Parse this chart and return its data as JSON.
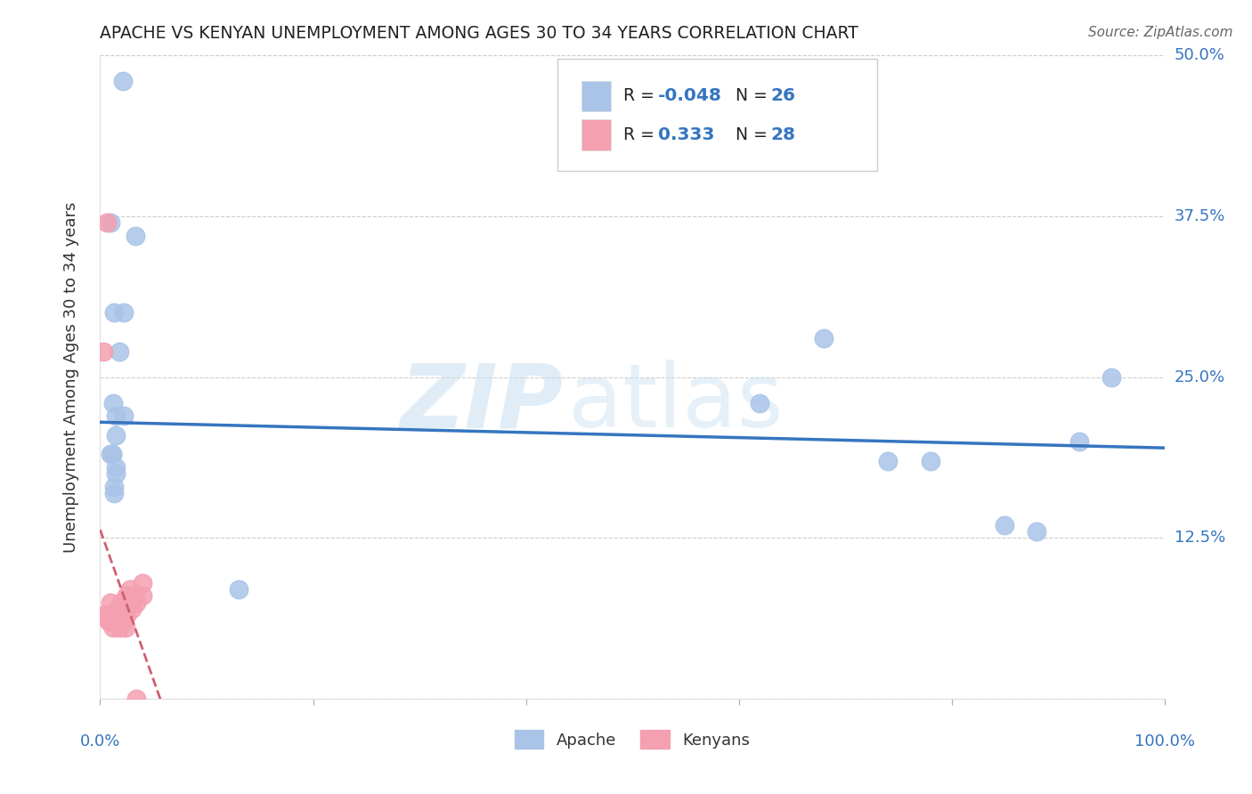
{
  "title": "APACHE VS KENYAN UNEMPLOYMENT AMONG AGES 30 TO 34 YEARS CORRELATION CHART",
  "source": "Source: ZipAtlas.com",
  "ylabel": "Unemployment Among Ages 30 to 34 years",
  "xlim": [
    0,
    1.0
  ],
  "ylim": [
    0,
    0.5
  ],
  "yticks": [
    0.0,
    0.125,
    0.25,
    0.375,
    0.5
  ],
  "yticklabels": [
    "",
    "12.5%",
    "25.0%",
    "37.5%",
    "50.0%"
  ],
  "apache_color": "#aac4e8",
  "kenyan_color": "#f4a0b0",
  "apache_line_color": "#3575c0",
  "kenyan_line_color": "#d06070",
  "apache_R": -0.048,
  "apache_N": 26,
  "kenyan_R": 0.333,
  "kenyan_N": 28,
  "watermark_zip": "ZIP",
  "watermark_atlas": "atlas",
  "background_color": "#ffffff",
  "grid_color": "#cccccc",
  "apache_x": [
    0.021,
    0.033,
    0.013,
    0.01,
    0.022,
    0.018,
    0.012,
    0.015,
    0.011,
    0.013,
    0.011,
    0.015,
    0.022,
    0.01,
    0.013,
    0.015,
    0.13,
    0.62,
    0.68,
    0.74,
    0.78,
    0.85,
    0.88,
    0.92,
    0.95,
    0.015
  ],
  "apache_y": [
    0.48,
    0.36,
    0.3,
    0.37,
    0.3,
    0.27,
    0.23,
    0.22,
    0.19,
    0.16,
    0.19,
    0.18,
    0.22,
    0.19,
    0.165,
    0.205,
    0.085,
    0.23,
    0.28,
    0.185,
    0.185,
    0.135,
    0.13,
    0.2,
    0.25,
    0.175
  ],
  "kenyan_x": [
    0.003,
    0.006,
    0.006,
    0.003,
    0.008,
    0.01,
    0.01,
    0.012,
    0.014,
    0.016,
    0.016,
    0.018,
    0.018,
    0.02,
    0.02,
    0.022,
    0.024,
    0.024,
    0.025,
    0.025,
    0.028,
    0.028,
    0.03,
    0.032,
    0.034,
    0.034,
    0.04,
    0.04
  ],
  "kenyan_y": [
    0.065,
    0.37,
    0.065,
    0.27,
    0.06,
    0.06,
    0.075,
    0.055,
    0.065,
    0.06,
    0.07,
    0.055,
    0.07,
    0.06,
    0.075,
    0.06,
    0.07,
    0.055,
    0.065,
    0.08,
    0.075,
    0.085,
    0.07,
    0.08,
    0.0,
    0.075,
    0.08,
    0.09
  ]
}
